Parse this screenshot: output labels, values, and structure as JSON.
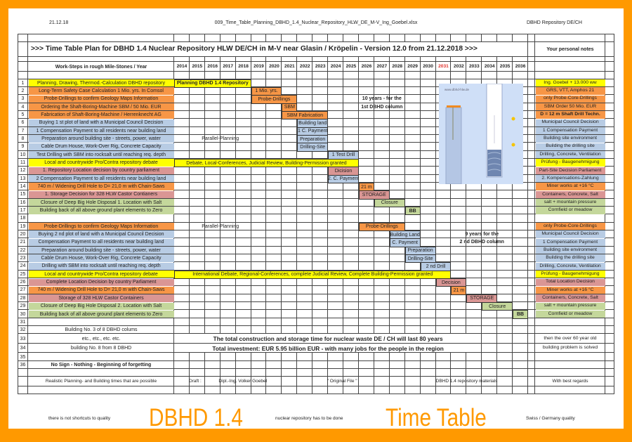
{
  "header": {
    "date": "21.12.18",
    "filename": "009_Time_Table_Planning_DBHD_1.4_Nuclear_Repository_HLW_DE_M-V_Ing_Goebel.xlsx",
    "right": "DBHD Repository DE/CH"
  },
  "colors": {
    "yellow": "#ffff00",
    "orange": "#f79646",
    "blue": "#b8cce4",
    "pink": "#da9694",
    "green": "#c4d79b",
    "border": "#ff9900",
    "highlight_year": "#e0302a",
    "image_bg": "#cfdff7"
  },
  "title": ">>> Time Table Plan for DBHD 1.4 Nuclear Repository HLW DE/CH in M-V near Glasin / Kröpelin - Version 12.0 from 21.12.2018 >>>",
  "notes_header": "Your personal notes",
  "tasks_header": "Work-Steps in rough Mile-Stones / Year",
  "years": [
    "2014",
    "2015",
    "2016",
    "2017",
    "2018",
    "2019",
    "2020",
    "2021",
    "2022",
    "2023",
    "2024",
    "2025",
    "2026",
    "2027",
    "2028",
    "2029",
    "2030",
    "2031",
    "2032",
    "2033",
    "2034",
    "2035",
    "2036"
  ],
  "highlight_year": "2031",
  "tasks": [
    {
      "num": "1",
      "text": "Planning, Drawing, Thermod.-Calculation DBHD repository",
      "color": "yellow"
    },
    {
      "num": "2",
      "text": "Long-Term Safety Case Calculation 1 Mio. yrs. In Comsol",
      "color": "orange"
    },
    {
      "num": "3",
      "text": "Probe-Drillings to confirm Geology Maps Information",
      "color": "orange"
    },
    {
      "num": "4",
      "text": "Ordering the Shaft-Boring-Machine SBM / 50 Mio. EUR",
      "color": "orange"
    },
    {
      "num": "5",
      "text": "Fabrication of Shaft-Boring-Machine / Herrenknecht AG",
      "color": "orange"
    },
    {
      "num": "6",
      "text": "Buying 1 st plot of land with a Municipal Council Decision",
      "color": "blue"
    },
    {
      "num": "7",
      "text": "1 Compensation Payment to all residents near building land",
      "color": "blue"
    },
    {
      "num": "8",
      "text": "Preparation around building site - streets, power, water",
      "color": "blue"
    },
    {
      "num": "9",
      "text": "Cable Drum House, Work-Over Rig, Concrete Capacity",
      "color": "blue"
    },
    {
      "num": "10",
      "text": "Test Drilling with SBM into rocksalt until reaching req. depth",
      "color": "blue"
    },
    {
      "num": "11",
      "text": "Local and countrywide Pro/Contra repository debate",
      "color": "yellow"
    },
    {
      "num": "12",
      "text": "1. Repository Location decision by country parliament",
      "color": "pink"
    },
    {
      "num": "13",
      "text": "2 Compensation Payment to all residents near building land",
      "color": "blue"
    },
    {
      "num": "14",
      "text": "740 m / Widening Drill Hole to D= 21,0 m with Chain-Saws",
      "color": "orange"
    },
    {
      "num": "15",
      "text": "1. Storage Decision for 328 HLW Castor Contianers",
      "color": "pink"
    },
    {
      "num": "16",
      "text": "Closure of Deep Big Hole Disposal 1. Location with Salt",
      "color": "green"
    },
    {
      "num": "17",
      "text": "Building back of all above ground plant elements to Zero",
      "color": "green"
    },
    {
      "num": "18",
      "text": "",
      "color": ""
    },
    {
      "num": "19",
      "text": "Probe-Drillings to confirm Geology Maps Information",
      "color": "orange"
    },
    {
      "num": "20",
      "text": "Buying 2 nd plot of land with a Municipal Council Decision",
      "color": "blue"
    },
    {
      "num": "21",
      "text": "Compensation Payment to all residents near building land",
      "color": "blue"
    },
    {
      "num": "22",
      "text": "Preparation around building site - streets, power, water",
      "color": "blue"
    },
    {
      "num": "23",
      "text": "Cable Drum House, Work-Over Rig, Concrete Capacity",
      "color": "blue"
    },
    {
      "num": "24",
      "text": "Drilling with SBM into rocksalt until reaching req. depth",
      "color": "blue"
    },
    {
      "num": "25",
      "text": "Local and countrywide Pro/Contra repository debate",
      "color": "yellow"
    },
    {
      "num": "26",
      "text": "Complete Location Decision by country Parliament",
      "color": "pink"
    },
    {
      "num": "27",
      "text": "740 m / Widening Drill Hole to D= 21,0 m with Chain-Saws",
      "color": "orange"
    },
    {
      "num": "28",
      "text": "Storage of 328 HLW Castor Containers",
      "color": "pink"
    },
    {
      "num": "29",
      "text": "Closure of Deep Big Hole Disposal 2. Location with Salt",
      "color": "green"
    },
    {
      "num": "30",
      "text": "Building back of all above ground plant elements to Zero",
      "color": "green"
    },
    {
      "num": "31",
      "text": "",
      "color": ""
    },
    {
      "num": "32",
      "text": "Building No. 3 of 8 DBHD colums",
      "color": ""
    },
    {
      "num": "33",
      "text": "etc., etc., etc. etc.",
      "color": ""
    },
    {
      "num": "34",
      "text": "building No. 8 from 8 DBHD",
      "color": ""
    },
    {
      "num": "35",
      "text": "",
      "color": ""
    },
    {
      "num": "36",
      "text": "No Sign - Nothing - Beginning of forgetting",
      "color": "",
      "bold": true
    }
  ],
  "notes": [
    {
      "row": 1,
      "text": "Ing. Goebel + 13.000 ww",
      "color": "yellow"
    },
    {
      "row": 2,
      "text": "GRS, VTT, Amphos 21",
      "color": "orange"
    },
    {
      "row": 3,
      "text": "only Probe-Core-Drillings",
      "color": "orange"
    },
    {
      "row": 4,
      "text": "SBM Order 50 Mio. EUR",
      "color": "orange"
    },
    {
      "row": 5,
      "text": "D = 12 m Shaft Drill Techn.",
      "color": "orange",
      "bold": true
    },
    {
      "row": 6,
      "text": "Municipal Council Decision",
      "color": "blue"
    },
    {
      "row": 7,
      "text": "1 Compensation Payment",
      "color": "blue"
    },
    {
      "row": 8,
      "text": "Building site environment",
      "color": "blue"
    },
    {
      "row": 9,
      "text": "Building the drilling site",
      "color": "blue"
    },
    {
      "row": 10,
      "text": "Drilling, Concrete, Ventilation",
      "color": "blue"
    },
    {
      "row": 11,
      "text": "Prüfung - Baugenehmigung",
      "color": "yellow"
    },
    {
      "row": 12,
      "text": "Part-Site Decision Parliament",
      "color": "pink"
    },
    {
      "row": 13,
      "text": "2. Kompensations-Zahlung",
      "color": "blue"
    },
    {
      "row": 14,
      "text": "Miner works at +16 °C",
      "color": "orange"
    },
    {
      "row": 15,
      "text": "Containers, Concrete, Salt",
      "color": "pink"
    },
    {
      "row": 16,
      "text": "salt + mountain pressure",
      "color": "green"
    },
    {
      "row": 17,
      "text": "Cornfield or meadow",
      "color": "green"
    },
    {
      "row": 19,
      "text": "only Probe-Core-Drillings",
      "color": "orange"
    },
    {
      "row": 20,
      "text": "Municipal Council Decision",
      "color": "blue"
    },
    {
      "row": 21,
      "text": "1 Compensation Payment",
      "color": "blue"
    },
    {
      "row": 22,
      "text": "Building site environment",
      "color": "blue"
    },
    {
      "row": 23,
      "text": "Building the drilling site",
      "color": "blue"
    },
    {
      "row": 24,
      "text": "Drilling, Concrete, Ventilation",
      "color": "blue"
    },
    {
      "row": 25,
      "text": "Prüfung - Baugenehmigung",
      "color": "yellow"
    },
    {
      "row": 26,
      "text": "Total Location Decision",
      "color": "pink"
    },
    {
      "row": 27,
      "text": "Miner works at  +16 °C",
      "color": "orange"
    },
    {
      "row": 28,
      "text": "Containers, Concrete, Salt",
      "color": "pink"
    },
    {
      "row": 29,
      "text": "salt + mountain pressure",
      "color": "green"
    },
    {
      "row": 30,
      "text": "Cornfield or meadow",
      "color": "green"
    },
    {
      "row": 33,
      "text": "then the over 60 year old",
      "color": ""
    },
    {
      "row": 34,
      "text": "building problem is solved",
      "color": ""
    }
  ],
  "bars": [
    {
      "row": 1,
      "from": 2014,
      "to": 2018,
      "text": "Planning DBHD 1.4 Repository",
      "color": "yellow",
      "bold": true
    },
    {
      "row": 2,
      "from": 2019,
      "to": 2020,
      "text": "1 Mio. yrs.",
      "color": "orange"
    },
    {
      "row": 3,
      "from": 2019,
      "to": 2021,
      "text": "Probe-Drillings",
      "color": "orange"
    },
    {
      "row": 4,
      "from": 2021,
      "to": 2021,
      "text": "SBM",
      "color": "orange"
    },
    {
      "row": 5,
      "from": 2021,
      "to": 2023,
      "text": "SBM Fabrication",
      "color": "orange"
    },
    {
      "row": 6,
      "from": 2022,
      "to": 2023,
      "text": "Building land",
      "color": "blue"
    },
    {
      "row": 7,
      "from": 2022,
      "to": 2023,
      "text": "1 C. Payment",
      "color": "blue"
    },
    {
      "row": 8,
      "from": 2022,
      "to": 2023,
      "text": "Preparation",
      "color": "blue"
    },
    {
      "row": 9,
      "from": 2022,
      "to": 2023,
      "text": "Drilling-Site",
      "color": "blue"
    },
    {
      "row": 10,
      "from": 2024,
      "to": 2025,
      "text": "1 Test Drill",
      "color": "blue"
    },
    {
      "row": 11,
      "from": 2014,
      "to": 2025,
      "text": "Debate, Local-Conferences, Judicial Review, Building-Permission granted",
      "color": "yellow"
    },
    {
      "row": 12,
      "from": 2024,
      "to": 2025,
      "text": "Dicision",
      "color": "pink"
    },
    {
      "row": 13,
      "from": 2024,
      "to": 2025,
      "text": "2. C. Payment",
      "color": "blue"
    },
    {
      "row": 14,
      "from": 2026,
      "to": 2026,
      "text": "21 m",
      "color": "orange"
    },
    {
      "row": 15,
      "from": 2026,
      "to": 2027,
      "text": "STORAGE",
      "color": "pink"
    },
    {
      "row": 16,
      "from": 2027,
      "to": 2028,
      "text": "Closure",
      "color": "green"
    },
    {
      "row": 17,
      "from": 2029,
      "to": 2029,
      "text": "BB",
      "color": "green",
      "bold": true
    },
    {
      "row": 19,
      "from": 2026,
      "to": 2028,
      "text": "Probe-Drillings",
      "color": "orange"
    },
    {
      "row": 20,
      "from": 2028,
      "to": 2029,
      "text": "Building Land",
      "color": "blue"
    },
    {
      "row": 21,
      "from": 2028,
      "to": 2029,
      "text": "C. Payment",
      "color": "blue"
    },
    {
      "row": 22,
      "from": 2029,
      "to": 2030,
      "text": "Preparation",
      "color": "blue"
    },
    {
      "row": 23,
      "from": 2029,
      "to": 2030,
      "text": "Drilling-Site",
      "color": "blue"
    },
    {
      "row": 24,
      "from": 2030,
      "to": 2031,
      "text": "2 nd Drill",
      "color": "blue"
    },
    {
      "row": 25,
      "from": 2014,
      "to": 2031,
      "text": "International Debate, Regional-Conferences, complete Judicial Review, Complete Building-Permission granted",
      "color": "yellow"
    },
    {
      "row": 26,
      "from": 2031,
      "to": 2032,
      "text": "Decision",
      "color": "pink"
    },
    {
      "row": 27,
      "from": 2032,
      "to": 2032,
      "text": "21 m",
      "color": "orange"
    },
    {
      "row": 28,
      "from": 2033,
      "to": 2034,
      "text": "STORAGE",
      "color": "pink"
    },
    {
      "row": 29,
      "from": 2034,
      "to": 2035,
      "text": "Closure",
      "color": "green"
    },
    {
      "row": 30,
      "from": 2036,
      "to": 2036,
      "text": "BB",
      "color": "green",
      "bold": true
    }
  ],
  "labels": [
    {
      "row": 8,
      "from": 2015,
      "to": 2018,
      "text": "Parallel-Planning"
    },
    {
      "row": 19,
      "from": 2015,
      "to": 2018,
      "text": "Parallel-Planning"
    },
    {
      "row": 3,
      "from": 2026,
      "to": 2028,
      "text": "10 years - for the",
      "bold": true
    },
    {
      "row": 4,
      "from": 2026,
      "to": 2028,
      "text": "1st DBHD column",
      "bold": true
    },
    {
      "row": 20,
      "from": 2032,
      "to": 2035,
      "text": "9 years for the",
      "bold": true
    },
    {
      "row": 21,
      "from": 2032,
      "to": 2035,
      "text": "2 nd DBHD column",
      "bold": true
    },
    {
      "row": 33,
      "from": 2014,
      "to": 2033,
      "text": "The total construction and storage time for nuclear waste DE / CH will last 80 years",
      "bold": true,
      "large": true
    },
    {
      "row": 34,
      "from": 2014,
      "to": 2033,
      "text": "Total investment: EUR 5.95 billion EUR - with many jobs for the people in the region",
      "bold": true,
      "large": true
    }
  ],
  "image": {
    "caption": "www.dbhd-hlw.de"
  },
  "footer_row": {
    "task": "Realistic Planning- and Building times that are possible",
    "draft": "Draft :",
    "author": "Dipl.-Ing.  Volker Goebel",
    "original": "\" Original File \"",
    "materials": "DBHD 1.4 repository materials",
    "notes": "With best regards"
  },
  "bottom": {
    "left": "there is not shortcuts to quality",
    "brand": "DBHD 1.4",
    "middle": "nuclear repository has to be done",
    "title": "Time Table",
    "right": "Swiss / Germany quality"
  }
}
